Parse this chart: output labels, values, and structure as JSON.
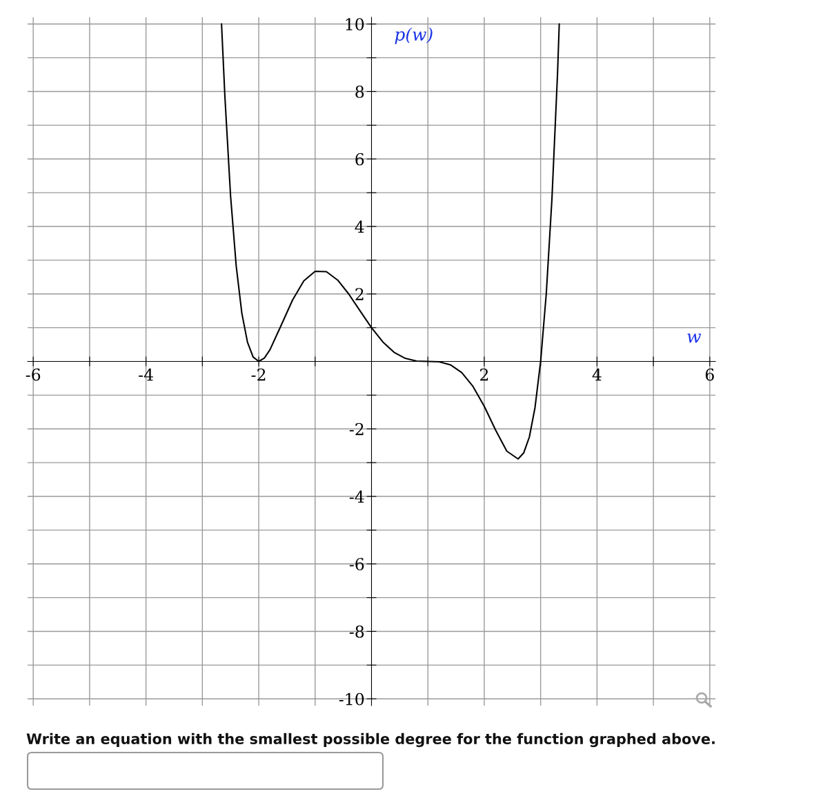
{
  "chart_data": {
    "type": "line",
    "xlabel": "w",
    "ylabel": "p(w)",
    "xlim": [
      -6.1,
      6.1
    ],
    "ylim": [
      -10.2,
      10.2
    ],
    "xticks": [
      -6,
      {
        "value": -5,
        "label": null
      },
      -4,
      {
        "value": -3,
        "label": null
      },
      -2,
      {
        "value": -1,
        "label": null
      },
      {
        "value": 1,
        "label": null
      },
      2,
      {
        "value": 3,
        "label": null
      },
      4,
      {
        "value": 5,
        "label": null
      },
      6
    ],
    "yticks": [
      -10,
      {
        "value": -9,
        "label": null
      },
      -8,
      {
        "value": -7,
        "label": null
      },
      -6,
      {
        "value": -5,
        "label": null
      },
      -4,
      {
        "value": -3,
        "label": null
      },
      -2,
      {
        "value": -1,
        "label": null
      },
      {
        "value": 1,
        "label": null
      },
      2,
      {
        "value": 3,
        "label": null
      },
      4,
      {
        "value": 5,
        "label": null
      },
      6,
      {
        "value": 7,
        "label": null
      },
      8,
      {
        "value": 9,
        "label": null
      },
      10
    ],
    "grid": true,
    "marker": "none",
    "line_style": "solid",
    "series": [
      {
        "color": "#000000",
        "x": [
          -2.66,
          -2.6,
          -2.5,
          -2.4,
          -2.3,
          -2.2,
          -2.1,
          -2.0,
          -1.9,
          -1.8,
          -1.6,
          -1.4,
          -1.2,
          -1.0,
          -0.8,
          -0.6,
          -0.4,
          -0.2,
          0.0,
          0.2,
          0.4,
          0.6,
          0.8,
          1.0,
          1.2,
          1.4,
          1.6,
          1.8,
          2.0,
          2.2,
          2.4,
          2.6,
          2.7,
          2.8,
          2.9,
          3.0,
          3.1,
          3.2,
          3.3,
          3.33
        ],
        "values": [
          10.0,
          7.84,
          4.91,
          2.83,
          1.43,
          0.57,
          0.13,
          0.0,
          0.1,
          0.35,
          1.08,
          1.82,
          2.39,
          2.67,
          2.66,
          2.41,
          1.99,
          1.49,
          1.0,
          0.58,
          0.27,
          0.09,
          0.01,
          0.0,
          -0.01,
          -0.1,
          -0.33,
          -0.74,
          -1.33,
          -2.03,
          -2.66,
          -2.89,
          -2.71,
          -2.24,
          -1.37,
          0.0,
          2.01,
          4.8,
          8.54,
          10.0
        ]
      }
    ],
    "annotations": [
      "Write an equation with the smallest possible degree for the function graphed above."
    ]
  }
}
